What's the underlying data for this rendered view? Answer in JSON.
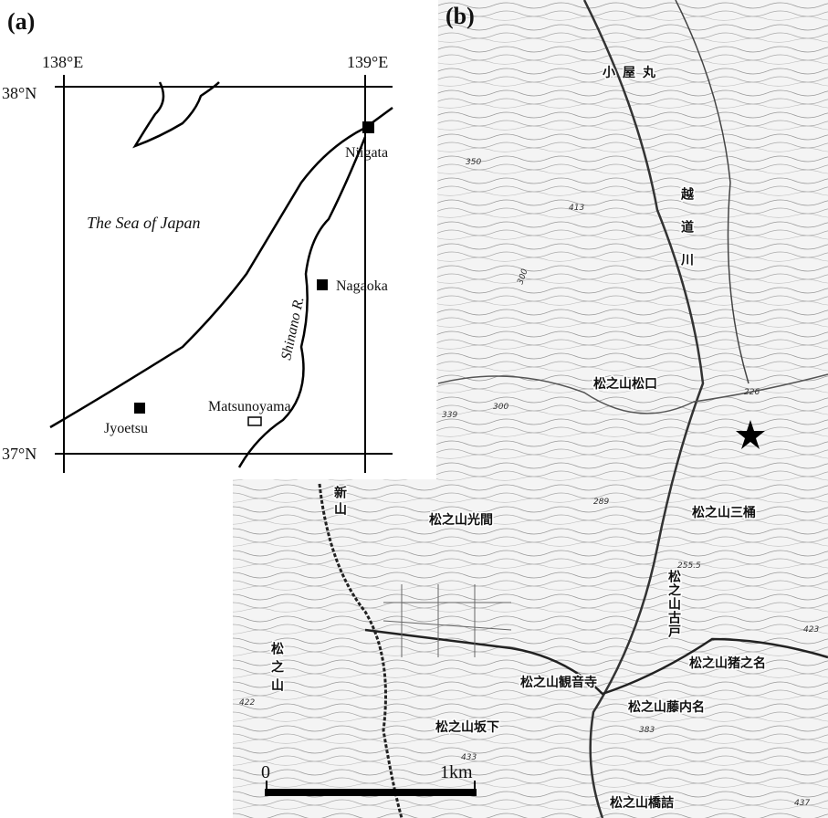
{
  "panel_a": {
    "label": "(a)",
    "lon_labels": [
      "138°E",
      "139°E"
    ],
    "lat_labels": [
      "38°N",
      "37°N"
    ],
    "sea": "The Sea of Japan",
    "river": "Shinano R.",
    "places": [
      "Niigata",
      "Nagaoka",
      "Jyoetsu",
      "Matsunoyama"
    ]
  },
  "panel_b": {
    "label": "(b)",
    "places": [
      "小屋丸",
      "越道川",
      "松之山松口",
      "松之山三桶",
      "松之山光間",
      "新山",
      "松之山古戸",
      "松之山猪之名",
      "松之山観音寺",
      "松之山藤内名",
      "松之山坂下",
      "松之山橋詰",
      "松之山"
    ],
    "elevations": [
      "350",
      "413",
      "300",
      "339",
      "300",
      "289",
      "226",
      "255.5",
      "423",
      "422",
      "433",
      "437",
      "383"
    ]
  },
  "scale_bar": {
    "start": "0",
    "end": "1km"
  }
}
